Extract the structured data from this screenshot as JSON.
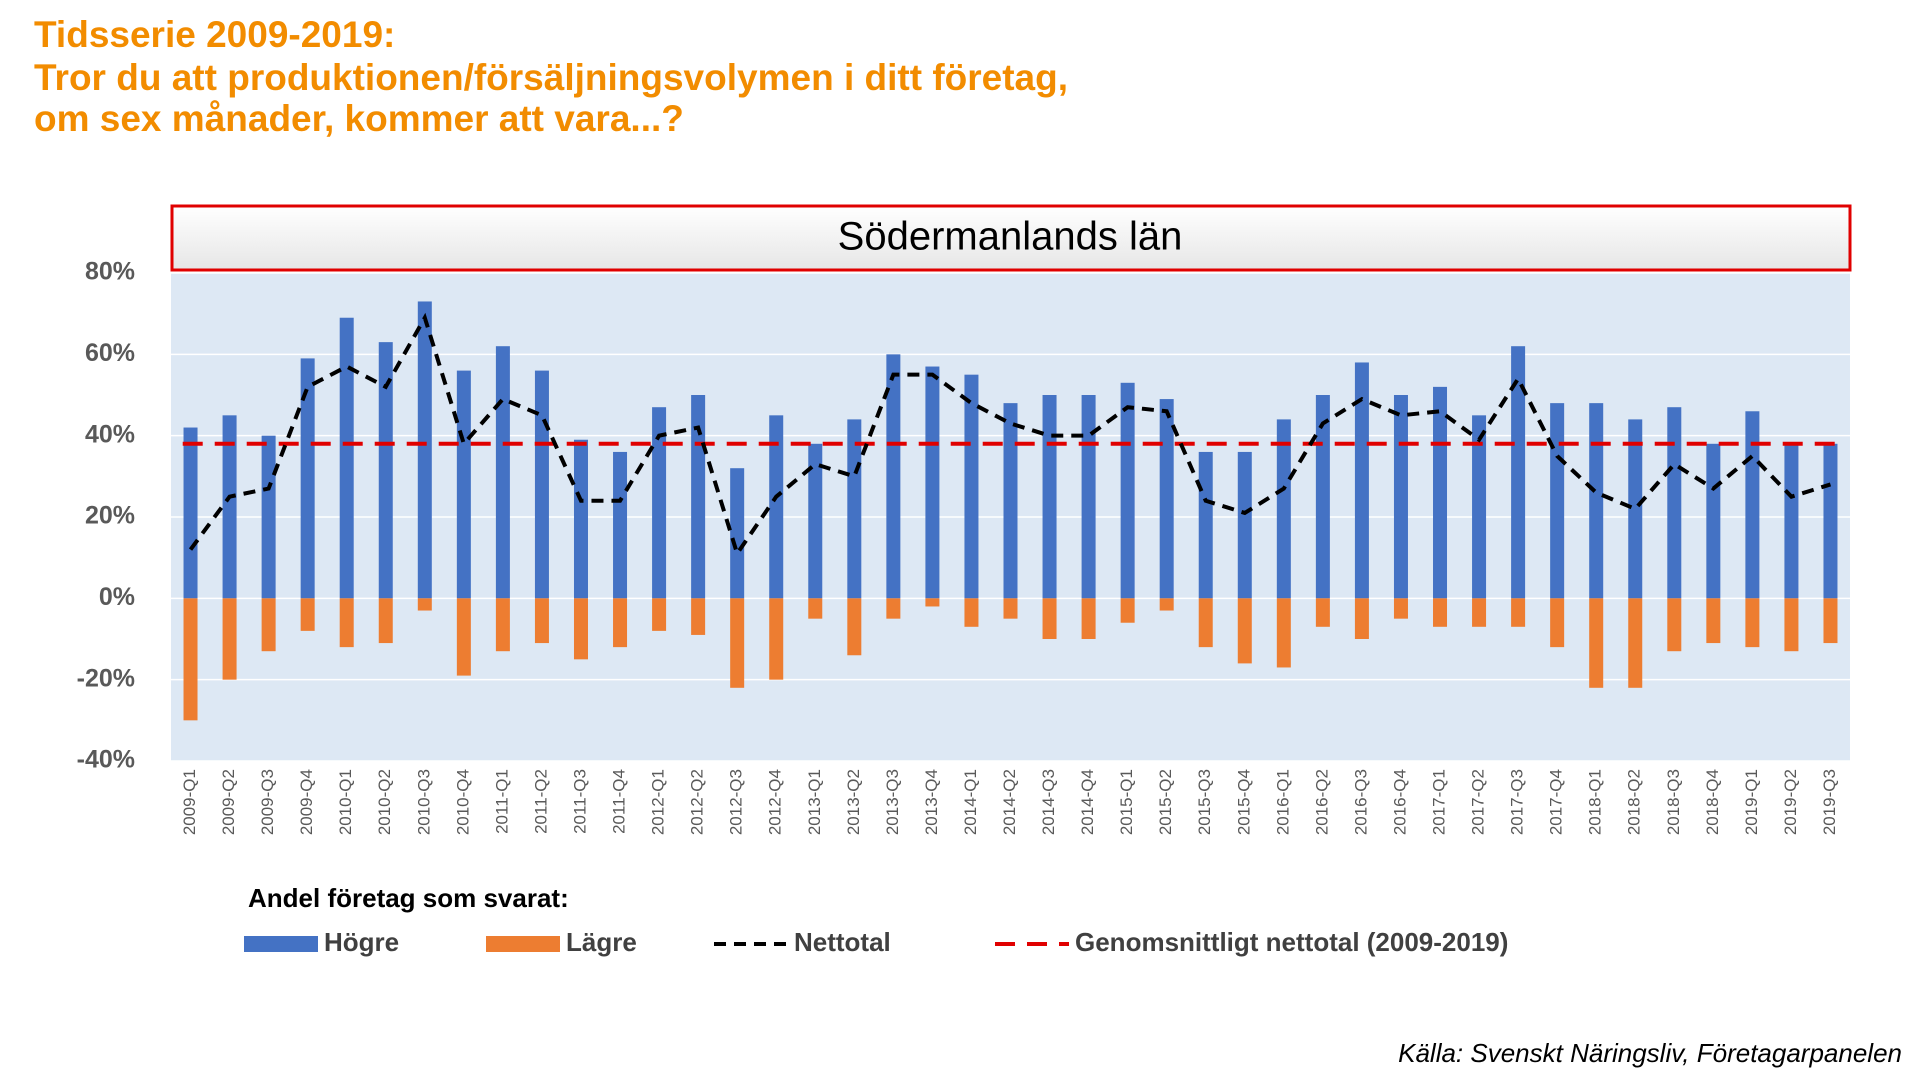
{
  "chart_data": {
    "type": "bar",
    "title": [
      "Tidsserie 2009-2019:",
      "Tror du att produktionen/försäljningsvolymen i ditt företag,",
      "om sex månader, kommer att vara...?"
    ],
    "panel_title": "Södermanlands län",
    "legend_title": "Andel företag som svarat:",
    "source": "Källa: Svenskt Näringsliv, Företagarpanelen",
    "categories": [
      "2009-Q1",
      "2009-Q2",
      "2009-Q3",
      "2009-Q4",
      "2010-Q1",
      "2010-Q2",
      "2010-Q3",
      "2010-Q4",
      "2011-Q1",
      "2011-Q2",
      "2011-Q3",
      "2011-Q4",
      "2012-Q1",
      "2012-Q2",
      "2012-Q3",
      "2012-Q4",
      "2013-Q1",
      "2013-Q2",
      "2013-Q3",
      "2013-Q4",
      "2014-Q1",
      "2014-Q2",
      "2014-Q3",
      "2014-Q4",
      "2015-Q1",
      "2015-Q2",
      "2015-Q3",
      "2015-Q4",
      "2016-Q1",
      "2016-Q2",
      "2016-Q3",
      "2016-Q4",
      "2017-Q1",
      "2017-Q2",
      "2017-Q3",
      "2017-Q4",
      "2018-Q1",
      "2018-Q2",
      "2018-Q3",
      "2018-Q4",
      "2019-Q1",
      "2019-Q2",
      "2019-Q3"
    ],
    "series": [
      {
        "name": "Högre",
        "type": "bar",
        "color": "#4472c4",
        "values": [
          42,
          45,
          40,
          59,
          69,
          63,
          73,
          56,
          62,
          56,
          39,
          36,
          47,
          50,
          32,
          45,
          38,
          44,
          60,
          57,
          55,
          48,
          50,
          50,
          53,
          49,
          36,
          36,
          44,
          50,
          58,
          50,
          52,
          45,
          62,
          48,
          48,
          44,
          47,
          38,
          46,
          38,
          38
        ]
      },
      {
        "name": "Lägre",
        "type": "bar",
        "color": "#ed7d31",
        "values": [
          -30,
          -20,
          -13,
          -8,
          -12,
          -11,
          -3,
          -19,
          -13,
          -11,
          -15,
          -12,
          -8,
          -9,
          -22,
          -20,
          -5,
          -14,
          -5,
          -2,
          -7,
          -5,
          -10,
          -10,
          -6,
          -3,
          -12,
          -16,
          -17,
          -7,
          -10,
          -5,
          -7,
          -7,
          -7,
          -12,
          -22,
          -22,
          -13,
          -11,
          -12,
          -13,
          -11
        ]
      },
      {
        "name": "Nettotal",
        "type": "line",
        "color": "#000000",
        "values": [
          12,
          25,
          27,
          52,
          57,
          52,
          69,
          38,
          49,
          45,
          24,
          24,
          40,
          42,
          11,
          25,
          33,
          30,
          55,
          55,
          48,
          43,
          40,
          40,
          47,
          46,
          24,
          21,
          27,
          43,
          49,
          45,
          46,
          39,
          54,
          35,
          26,
          22,
          33,
          27,
          35,
          25,
          28
        ]
      },
      {
        "name": "Genomsnittligt nettotal (2009-2019)",
        "type": "hline",
        "color": "#e00000",
        "value": 38
      }
    ],
    "ylim": [
      -40,
      80
    ],
    "yticks": [
      {
        "value": -40,
        "label": "-40%"
      },
      {
        "value": -20,
        "label": "-20%"
      },
      {
        "value": 0,
        "label": "0%"
      },
      {
        "value": 20,
        "label": "20%"
      },
      {
        "value": 40,
        "label": "40%"
      },
      {
        "value": 60,
        "label": "60%"
      },
      {
        "value": 80,
        "label": "80%"
      }
    ],
    "grid": true
  }
}
